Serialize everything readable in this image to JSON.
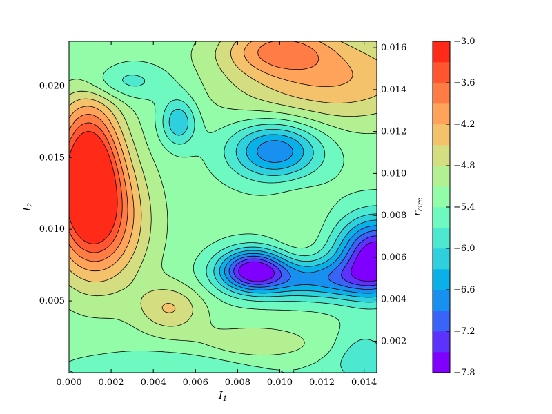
{
  "chart_data": {
    "type": "heatmap",
    "subtype": "filled-contour",
    "colormap": "rainbow",
    "title": "",
    "xlabel": "I",
    "xlabel_sub": "1",
    "ylabel": "I",
    "ylabel_sub": "2",
    "right_axis_label": "r",
    "right_axis_label_sub": "circ",
    "xlim": [
      0.0,
      0.0146
    ],
    "ylim": [
      0.0,
      0.0231
    ],
    "right_ylim": [
      0.0005,
      0.0163
    ],
    "x_ticks": [
      "0.000",
      "0.002",
      "0.004",
      "0.006",
      "0.008",
      "0.010",
      "0.012",
      "0.014"
    ],
    "y_ticks": [
      "0.005",
      "0.010",
      "0.015",
      "0.020"
    ],
    "right_ticks": [
      "0.002",
      "0.004",
      "0.006",
      "0.008",
      "0.010",
      "0.012",
      "0.014",
      "0.016"
    ],
    "colorbar": {
      "range": [
        -7.8,
        -3.0
      ],
      "levels": [
        -7.8,
        -7.5,
        -7.2,
        -6.9,
        -6.6,
        -6.3,
        -6.0,
        -5.7,
        -5.4,
        -5.1,
        -4.8,
        -4.5,
        -4.2,
        -3.9,
        -3.6,
        -3.3,
        -3.0
      ],
      "tick_labels": [
        "−3.0",
        "−3.6",
        "−4.2",
        "−4.8",
        "−5.4",
        "−6.0",
        "−6.6",
        "−7.2",
        "−7.8"
      ],
      "tick_values": [
        -3.0,
        -3.6,
        -4.2,
        -4.8,
        -5.4,
        -6.0,
        -6.6,
        -7.2,
        -7.8
      ],
      "colors": [
        "#7f00ff",
        "#5d32fc",
        "#3a63f8",
        "#1890f0",
        "#0ab0e8",
        "#2fd0dd",
        "#4de8d0",
        "#6ef9c0",
        "#92fca8",
        "#b3f092",
        "#d4dd7f",
        "#f5c26c",
        "#ffa25a",
        "#ff7d45",
        "#ff5530",
        "#ff2a18"
      ]
    },
    "features": [
      {
        "kind": "max",
        "x": 0.0009,
        "y": 0.0145,
        "value": -3.05,
        "sx": 0.0011,
        "sy": 0.0034
      },
      {
        "kind": "max",
        "x": 0.0014,
        "y": 0.0105,
        "value": -3.7,
        "sx": 0.0016,
        "sy": 0.0032
      },
      {
        "kind": "max",
        "x": 0.0125,
        "y": 0.0205,
        "value": -4.2,
        "sx": 0.0035,
        "sy": 0.0022
      },
      {
        "kind": "max",
        "x": 0.0099,
        "y": 0.0226,
        "value": -4.2,
        "sx": 0.0018,
        "sy": 0.0012
      },
      {
        "kind": "max",
        "x": 0.0109,
        "y": 0.0102,
        "value": -5.1,
        "sx": 0.0009,
        "sy": 0.0021
      },
      {
        "kind": "max",
        "x": 0.0088,
        "y": 0.0015,
        "value": -4.8,
        "sx": 0.0022,
        "sy": 0.0012
      },
      {
        "kind": "max",
        "x": 0.0048,
        "y": 0.0045,
        "value": -4.5,
        "sx": 0.0011,
        "sy": 0.0012
      },
      {
        "kind": "min",
        "x": 0.0146,
        "y": 0.0082,
        "value": -7.8,
        "sx": 0.0013,
        "sy": 0.0018
      },
      {
        "kind": "min",
        "x": 0.0087,
        "y": 0.0072,
        "value": -7.5,
        "sx": 0.0011,
        "sy": 0.001
      },
      {
        "kind": "min",
        "x": 0.0098,
        "y": 0.0155,
        "value": -6.9,
        "sx": 0.0015,
        "sy": 0.0014
      },
      {
        "kind": "min",
        "x": 0.0052,
        "y": 0.0175,
        "value": -6.3,
        "sx": 0.0006,
        "sy": 0.0012
      },
      {
        "kind": "min",
        "x": 0.0025,
        "y": 0.0203,
        "value": -5.9,
        "sx": 0.0016,
        "sy": 0.0009
      },
      {
        "kind": "min",
        "x": 0.0117,
        "y": 0.0065,
        "value": -6.6,
        "sx": 0.0025,
        "sy": 0.001
      },
      {
        "kind": "min",
        "x": 0.0068,
        "y": 0.0005,
        "value": -5.8,
        "sx": 0.004,
        "sy": 0.0008
      },
      {
        "kind": "min",
        "x": 0.014,
        "y": 0.001,
        "value": -5.9,
        "sx": 0.001,
        "sy": 0.0015
      }
    ],
    "base_value": -5.3,
    "legend": "colorbar-right"
  }
}
